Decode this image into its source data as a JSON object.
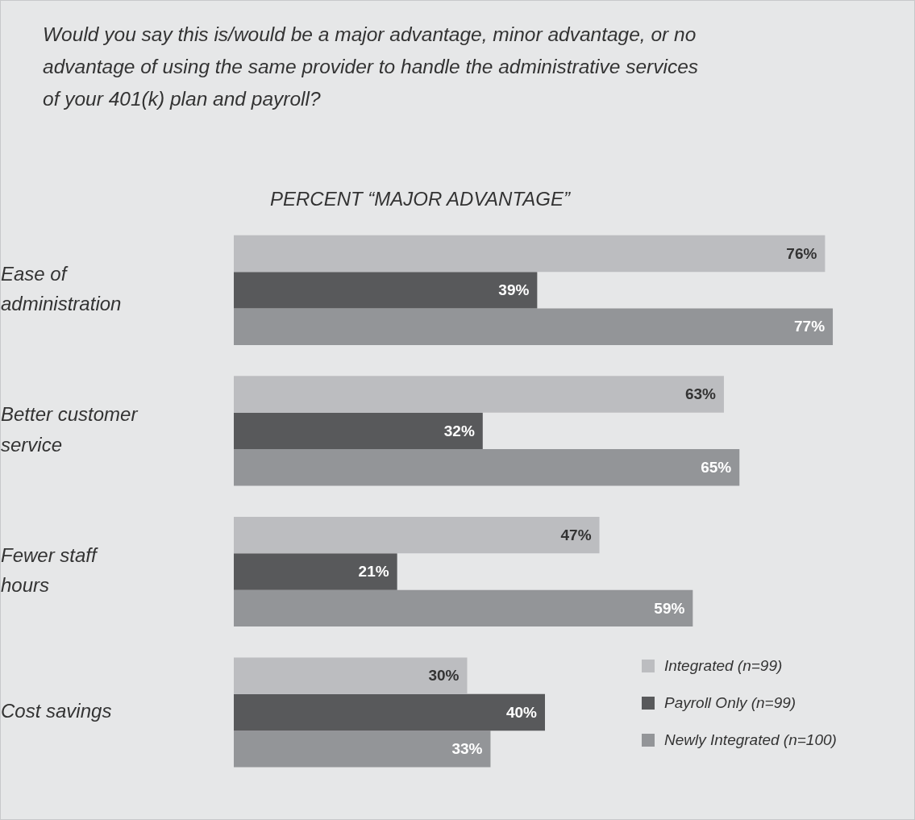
{
  "chart_data": {
    "type": "bar",
    "orientation": "horizontal",
    "title": "Would you say this is/would be a major advantage, minor advantage, or no advantage of using the same provider to handle the administrative services of your 401(k) plan and payroll?",
    "subtitle": "PERCENT “MAJOR ADVANTAGE”",
    "categories": [
      "Ease of administration",
      "Better customer service",
      "Fewer staff hours",
      "Cost savings"
    ],
    "series": [
      {
        "name": "Integrated (n=99)",
        "color": "#bcbdc0",
        "values": [
          76,
          63,
          47,
          30
        ],
        "value_labels": [
          "76%",
          "63%",
          "47%",
          "30%"
        ]
      },
      {
        "name": "Payroll Only (n=99)",
        "color": "#58595b",
        "values": [
          39,
          32,
          21,
          40
        ],
        "value_labels": [
          "39%",
          "32%",
          "21%",
          "40%"
        ]
      },
      {
        "name": "Newly Integrated (n=100)",
        "color": "#939598",
        "values": [
          77,
          65,
          59,
          33
        ],
        "value_labels": [
          "77%",
          "65%",
          "59%",
          "33%"
        ]
      }
    ],
    "tick_labels": "y",
    "legend": "bottom right"
  }
}
